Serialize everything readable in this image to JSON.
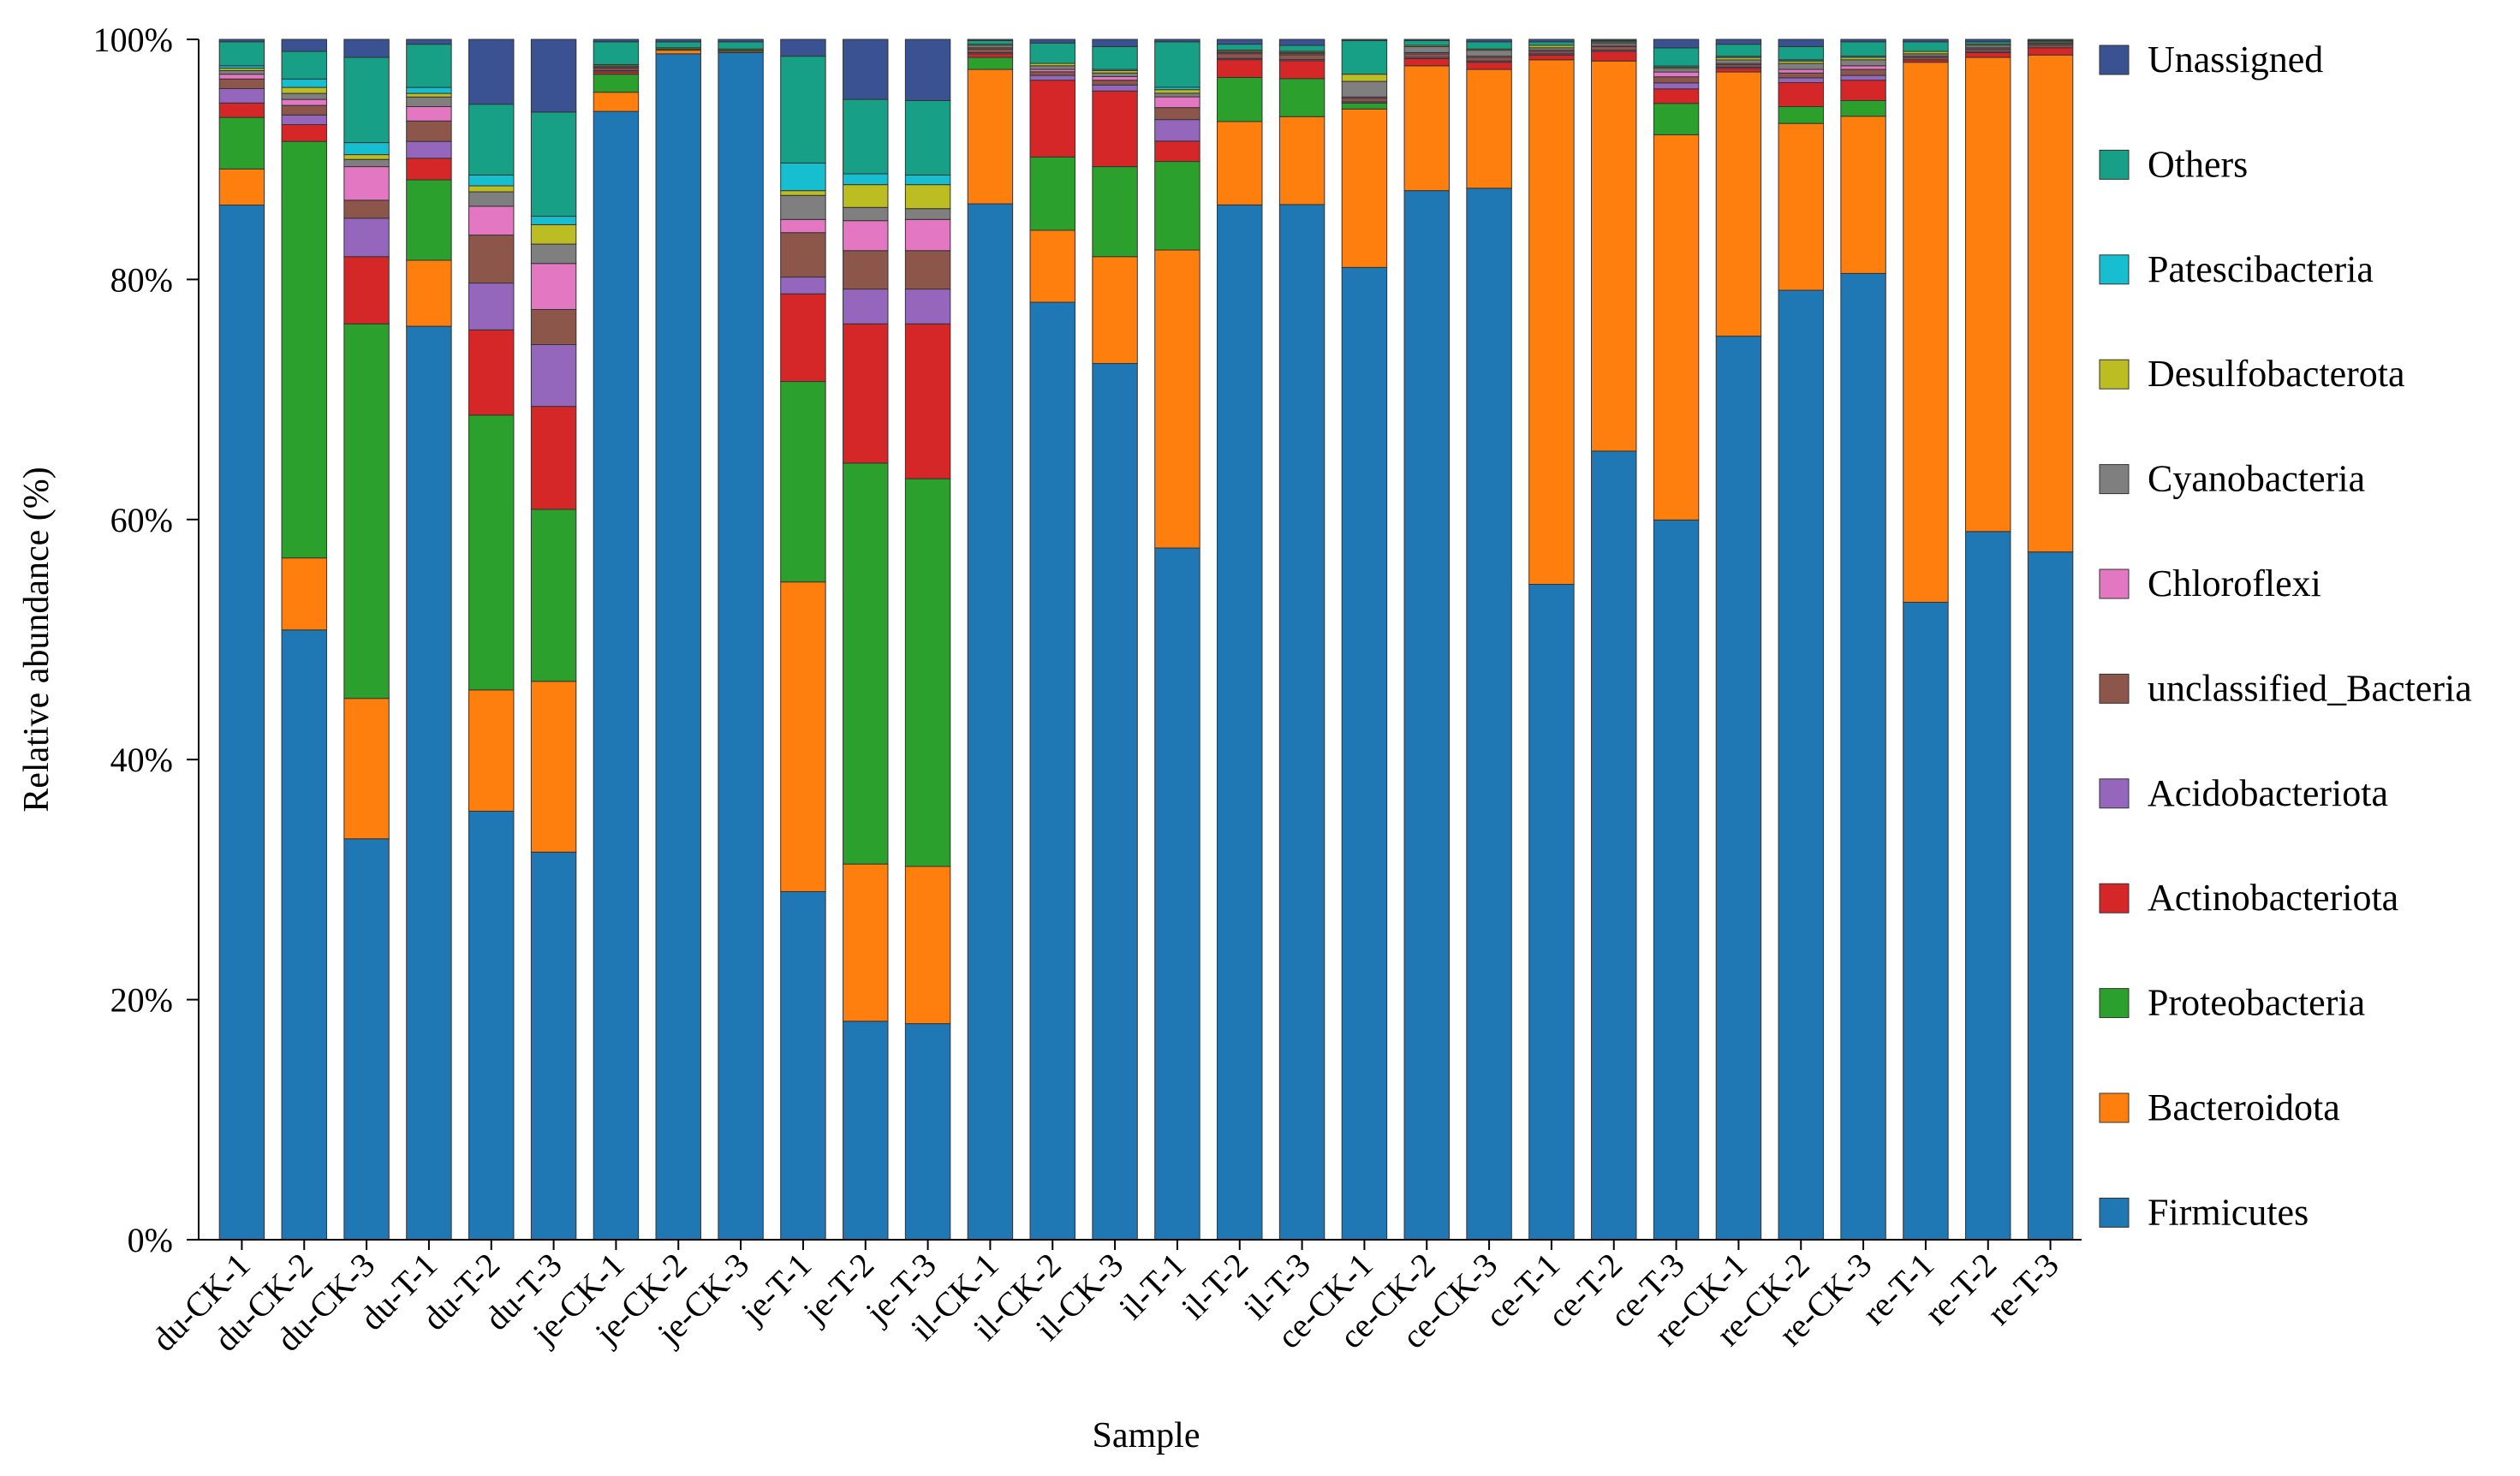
{
  "chart_data": {
    "type": "bar",
    "stacked": true,
    "normalized": true,
    "xlabel": "Sample",
    "ylabel": "Relative abundance (%)",
    "ylim": [
      0,
      100
    ],
    "yticks": [
      "0%",
      "20%",
      "40%",
      "60%",
      "80%",
      "100%"
    ],
    "legend_position": "right",
    "grid": false,
    "categories": [
      "du-CK-1",
      "du-CK-2",
      "du-CK-3",
      "du-T-1",
      "du-T-2",
      "du-T-3",
      "je-CK-1",
      "je-CK-2",
      "je-CK-3",
      "je-T-1",
      "je-T-2",
      "je-T-3",
      "il-CK-1",
      "il-CK-2",
      "il-CK-3",
      "il-T-1",
      "il-T-2",
      "il-T-3",
      "ce-CK-1",
      "ce-CK-2",
      "ce-CK-3",
      "ce-T-1",
      "ce-T-2",
      "ce-T-3",
      "re-CK-1",
      "re-CK-2",
      "re-CK-3",
      "re-T-1",
      "re-T-2",
      "re-T-3"
    ],
    "series": [
      {
        "name": "Firmicutes",
        "color": "#1f77b4",
        "values": [
          86.2,
          50.8,
          33.4,
          76.1,
          35.7,
          32.0,
          94.0,
          98.8,
          98.9,
          29.0,
          18.2,
          18.0,
          86.3,
          78.1,
          73.0,
          57.8,
          86.9,
          87.1,
          81.0,
          87.4,
          87.6,
          54.6,
          65.7,
          59.6,
          74.9,
          79.1,
          80.5,
          53.0,
          59.0,
          57.3
        ]
      },
      {
        "name": "Bacteroidota",
        "color": "#ff7f0e",
        "values": [
          3.0,
          6.0,
          11.7,
          5.5,
          10.1,
          14.1,
          1.6,
          0.3,
          0.1,
          25.8,
          13.1,
          13.1,
          11.2,
          6.0,
          8.9,
          24.9,
          7.0,
          7.4,
          13.2,
          10.4,
          9.9,
          43.7,
          32.5,
          31.9,
          21.9,
          13.9,
          13.1,
          44.9,
          39.5,
          41.4
        ]
      },
      {
        "name": "Proteobacteria",
        "color": "#2ca02c",
        "values": [
          4.3,
          34.7,
          31.2,
          6.7,
          22.9,
          14.2,
          1.5,
          0.1,
          0.1,
          16.7,
          33.4,
          32.3,
          1.0,
          6.1,
          7.5,
          7.4,
          3.7,
          3.2,
          0.5,
          0.0,
          0.0,
          0.0,
          0.0,
          2.6,
          0.0,
          1.4,
          1.3,
          0.0,
          0.0,
          0.0
        ]
      },
      {
        "name": "Actinobacteriota",
        "color": "#d62728",
        "values": [
          1.2,
          1.4,
          5.6,
          1.8,
          7.1,
          8.5,
          0.2,
          0.0,
          0.0,
          7.3,
          11.6,
          12.9,
          0.3,
          6.4,
          6.3,
          1.7,
          1.5,
          1.5,
          0.0,
          0.6,
          0.6,
          0.4,
          0.8,
          1.2,
          0.3,
          2.0,
          1.7,
          0.2,
          0.4,
          0.6
        ]
      },
      {
        "name": "Acidobacteriota",
        "color": "#9467bd",
        "values": [
          1.2,
          0.8,
          3.2,
          1.4,
          3.9,
          5.1,
          0.1,
          0.0,
          0.0,
          1.4,
          2.9,
          2.9,
          0.1,
          0.4,
          0.5,
          1.8,
          0.1,
          0.1,
          0.1,
          0.1,
          0.1,
          0.1,
          0.1,
          0.5,
          0.1,
          0.4,
          0.4,
          0.0,
          0.1,
          0.0
        ]
      },
      {
        "name": "unclassified_Bacteria",
        "color": "#8c564b",
        "values": [
          0.8,
          0.8,
          1.5,
          1.7,
          4.0,
          2.9,
          0.2,
          0.0,
          0.0,
          3.7,
          3.2,
          3.2,
          0.3,
          0.3,
          0.4,
          1.0,
          0.4,
          0.4,
          0.3,
          0.3,
          0.3,
          0.2,
          0.3,
          0.5,
          0.2,
          0.4,
          0.5,
          0.2,
          0.2,
          0.2
        ]
      },
      {
        "name": "Chloroflexi",
        "color": "#e377c2",
        "values": [
          0.4,
          0.5,
          2.8,
          1.2,
          2.4,
          3.8,
          0.1,
          0.0,
          0.0,
          1.1,
          2.5,
          2.6,
          0.1,
          0.2,
          0.3,
          0.9,
          0.1,
          0.1,
          0.1,
          0.1,
          0.1,
          0.1,
          0.1,
          0.4,
          0.1,
          0.3,
          0.3,
          0.1,
          0.1,
          0.1
        ]
      },
      {
        "name": "Cyanobacteria",
        "color": "#7f7f7f",
        "values": [
          0.3,
          0.5,
          0.6,
          0.8,
          1.2,
          1.6,
          0.1,
          0.0,
          0.0,
          2.0,
          1.1,
          0.9,
          0.2,
          0.3,
          0.3,
          0.3,
          0.1,
          0.1,
          1.3,
          0.5,
          0.5,
          0.2,
          0.2,
          0.3,
          0.3,
          0.5,
          0.5,
          0.2,
          0.2,
          0.1
        ]
      },
      {
        "name": "Desulfobacterota",
        "color": "#bcbd22",
        "values": [
          0.2,
          0.5,
          0.4,
          0.3,
          0.5,
          1.6,
          0.1,
          0.1,
          0.1,
          0.4,
          1.9,
          2.0,
          0.1,
          0.2,
          0.2,
          0.3,
          0.1,
          0.1,
          0.6,
          0.1,
          0.1,
          0.2,
          0.1,
          0.1,
          0.2,
          0.2,
          0.2,
          0.2,
          0.1,
          0.1
        ]
      },
      {
        "name": "Patescibacteria",
        "color": "#17becf",
        "values": [
          0.2,
          0.7,
          1.0,
          0.5,
          0.9,
          0.7,
          0.0,
          0.0,
          0.0,
          2.3,
          0.9,
          0.8,
          0.0,
          0.0,
          0.1,
          0.2,
          0.0,
          0.0,
          0.0,
          0.0,
          0.0,
          0.0,
          0.0,
          0.1,
          0.1,
          0.1,
          0.1,
          0.0,
          0.0,
          0.0
        ]
      },
      {
        "name": "Others",
        "color": "#17a085",
        "values": [
          2.0,
          2.3,
          7.1,
          3.6,
          5.9,
          8.6,
          1.9,
          0.5,
          0.6,
          8.9,
          6.2,
          6.2,
          0.3,
          1.7,
          1.9,
          3.8,
          0.5,
          0.5,
          2.8,
          0.4,
          0.6,
          0.3,
          0.1,
          1.5,
          1.0,
          1.1,
          1.2,
          0.8,
          0.2,
          0.1
        ]
      },
      {
        "name": "Unassigned",
        "color": "#3a5291",
        "values": [
          0.2,
          1.0,
          1.5,
          0.4,
          5.4,
          6.0,
          0.2,
          0.2,
          0.2,
          1.4,
          5.0,
          5.1,
          0.1,
          0.3,
          0.6,
          0.2,
          0.4,
          0.5,
          0.1,
          0.1,
          0.2,
          0.2,
          0.1,
          0.7,
          0.4,
          0.6,
          0.2,
          0.2,
          0.2,
          0.1
        ]
      }
    ]
  }
}
